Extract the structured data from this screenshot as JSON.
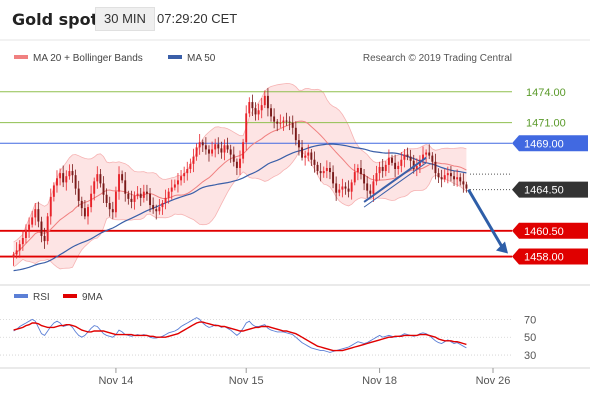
{
  "header": {
    "title": "Gold spot",
    "timeframe": "30 MIN",
    "time": "07:29:20 CET"
  },
  "legend": {
    "ma20_bb": "MA 20 + Bollinger Bands",
    "ma50": "MA 50",
    "attribution": "Research © 2019 Trading Central"
  },
  "rsi_legend": {
    "rsi": "RSI",
    "ma9": "9MA"
  },
  "colors": {
    "bull": "#e8232a",
    "bear": "#7a1a1a",
    "ma20": "#f08080",
    "band_fill": "#fde4e4",
    "ma50": "#3a5fa8",
    "resistance": "#8fbf4f",
    "pivot": "#4169e1",
    "support": "#e00000",
    "trend": "#3a5fa8",
    "arrow": "#2e5ea8",
    "rsi": "#5b7fd6",
    "rsi_ma": "#e00000",
    "grid": "#d0d0d0",
    "axis_text": "#555555",
    "last_price_tag": "#333333"
  },
  "chart_data": [
    {
      "type": "candlestick",
      "title": "Gold spot",
      "ylim": [
        1456.5,
        1476.5
      ],
      "x_ticks": [
        {
          "label": "Nov 14",
          "index": 33
        },
        {
          "label": "Nov 15",
          "index": 75
        },
        {
          "label": "Nov 18",
          "index": 118
        },
        {
          "label": "Nov 26",
          "index": 135
        }
      ],
      "levels": [
        {
          "value": 1474.0,
          "label": "1474.00",
          "kind": "resistance"
        },
        {
          "value": 1471.0,
          "label": "1471.00",
          "kind": "resistance"
        },
        {
          "value": 1469.0,
          "label": "1469.00",
          "kind": "pivot"
        },
        {
          "value": 1464.5,
          "label": "1464.50",
          "kind": "last"
        },
        {
          "value": 1460.5,
          "label": "1460.50",
          "kind": "support"
        },
        {
          "value": 1458.0,
          "label": "1458.00",
          "kind": "support"
        }
      ],
      "close": [
        1458.2,
        1458.6,
        1459.2,
        1459.8,
        1460.6,
        1461.1,
        1461.8,
        1462.6,
        1461.4,
        1460.0,
        1459.5,
        1461.9,
        1463.8,
        1464.9,
        1465.6,
        1466.1,
        1465.2,
        1465.8,
        1466.3,
        1465.9,
        1464.6,
        1463.4,
        1462.7,
        1461.9,
        1462.8,
        1464.1,
        1465.3,
        1466.0,
        1465.1,
        1464.0,
        1463.2,
        1462.6,
        1462.3,
        1464.3,
        1466.0,
        1465.4,
        1464.1,
        1463.6,
        1463.3,
        1463.9,
        1464.1,
        1463.7,
        1464.3,
        1464.1,
        1463.0,
        1462.6,
        1462.4,
        1462.8,
        1463.2,
        1463.7,
        1464.3,
        1464.7,
        1465.0,
        1465.4,
        1465.8,
        1466.1,
        1466.5,
        1467.0,
        1467.7,
        1468.6,
        1469.1,
        1468.8,
        1468.4,
        1468.0,
        1468.4,
        1468.9,
        1468.5,
        1468.1,
        1468.8,
        1468.4,
        1467.9,
        1467.2,
        1466.6,
        1467.5,
        1469.1,
        1471.9,
        1473.0,
        1472.4,
        1471.8,
        1472.2,
        1472.7,
        1473.6,
        1472.4,
        1471.6,
        1471.1,
        1470.9,
        1471.0,
        1471.2,
        1471.1,
        1471.0,
        1470.5,
        1469.3,
        1468.6,
        1467.6,
        1467.8,
        1468.1,
        1467.4,
        1466.9,
        1466.3,
        1466.1,
        1466.3,
        1466.6,
        1466.2,
        1465.1,
        1464.2,
        1464.5,
        1464.8,
        1464.6,
        1464.3,
        1465.2,
        1466.2,
        1466.6,
        1466.0,
        1465.1,
        1464.4,
        1464.1,
        1465.3,
        1466.1,
        1466.7,
        1466.3,
        1466.9,
        1467.6,
        1467.1,
        1466.5,
        1466.8,
        1467.4,
        1467.9,
        1467.7,
        1467.3,
        1466.5,
        1466.8,
        1467.4,
        1467.9,
        1468.1,
        1467.8,
        1467.2,
        1466.1,
        1465.7,
        1465.5,
        1465.9,
        1466.1,
        1465.8,
        1465.5,
        1465.7,
        1465.3,
        1465.0,
        1464.6
      ]
    },
    {
      "type": "line",
      "title": "RSI",
      "ylim": [
        20,
        85
      ],
      "y_ticks": [
        70,
        50,
        30
      ],
      "series": [
        {
          "name": "RSI",
          "values": [
            57,
            59,
            62,
            64,
            66,
            68,
            70,
            68,
            61,
            54,
            52,
            57,
            62,
            66,
            68,
            66,
            62,
            63,
            64,
            61,
            56,
            52,
            50,
            52,
            56,
            60,
            63,
            62,
            58,
            54,
            52,
            51,
            50,
            53,
            58,
            56,
            53,
            52,
            51,
            52,
            53,
            52,
            53,
            52,
            50,
            49,
            49,
            50,
            51,
            53,
            55,
            56,
            57,
            59,
            62,
            64,
            66,
            68,
            70,
            72,
            70,
            66,
            63,
            61,
            62,
            64,
            63,
            61,
            62,
            60,
            58,
            55,
            52,
            55,
            60,
            66,
            68,
            64,
            62,
            62,
            63,
            64,
            60,
            58,
            57,
            56,
            56,
            56,
            55,
            54,
            53,
            50,
            47,
            44,
            42,
            40,
            38,
            37,
            36,
            35,
            35,
            34,
            33,
            34,
            35,
            36,
            37,
            38,
            39,
            41,
            43,
            45,
            44,
            43,
            44,
            46,
            48,
            50,
            52,
            50,
            51,
            52,
            51,
            50,
            51,
            52,
            54,
            53,
            52,
            51,
            52,
            54,
            55,
            54,
            52,
            49,
            46,
            44,
            43,
            45,
            47,
            45,
            43,
            44,
            42,
            40,
            38
          ]
        },
        {
          "name": "9MA",
          "values": [
            58,
            59,
            60,
            61,
            63,
            64,
            66,
            66,
            65,
            63,
            62,
            61,
            61,
            61,
            62,
            63,
            63,
            64,
            64,
            63,
            62,
            60,
            58,
            57,
            56,
            56,
            57,
            57,
            57,
            57,
            56,
            55,
            54,
            53,
            53,
            53,
            53,
            53,
            53,
            52,
            52,
            52,
            52,
            52,
            51,
            51,
            50,
            50,
            50,
            50,
            51,
            52,
            53,
            54,
            56,
            58,
            60,
            62,
            64,
            66,
            67,
            67,
            66,
            65,
            64,
            63,
            63,
            62,
            62,
            61,
            60,
            59,
            58,
            57,
            57,
            58,
            59,
            60,
            61,
            61,
            62,
            62,
            62,
            61,
            60,
            59,
            58,
            57,
            57,
            56,
            55,
            54,
            52,
            50,
            48,
            46,
            44,
            42,
            40,
            39,
            38,
            37,
            36,
            35,
            35,
            35,
            35,
            36,
            37,
            38,
            39,
            40,
            41,
            42,
            43,
            44,
            45,
            46,
            47,
            48,
            49,
            50,
            50,
            51,
            51,
            51,
            52,
            52,
            52,
            52,
            52,
            53,
            53,
            53,
            52,
            51,
            50,
            48,
            47,
            46,
            46,
            46,
            45,
            45,
            44,
            43,
            42
          ]
        }
      ]
    }
  ]
}
